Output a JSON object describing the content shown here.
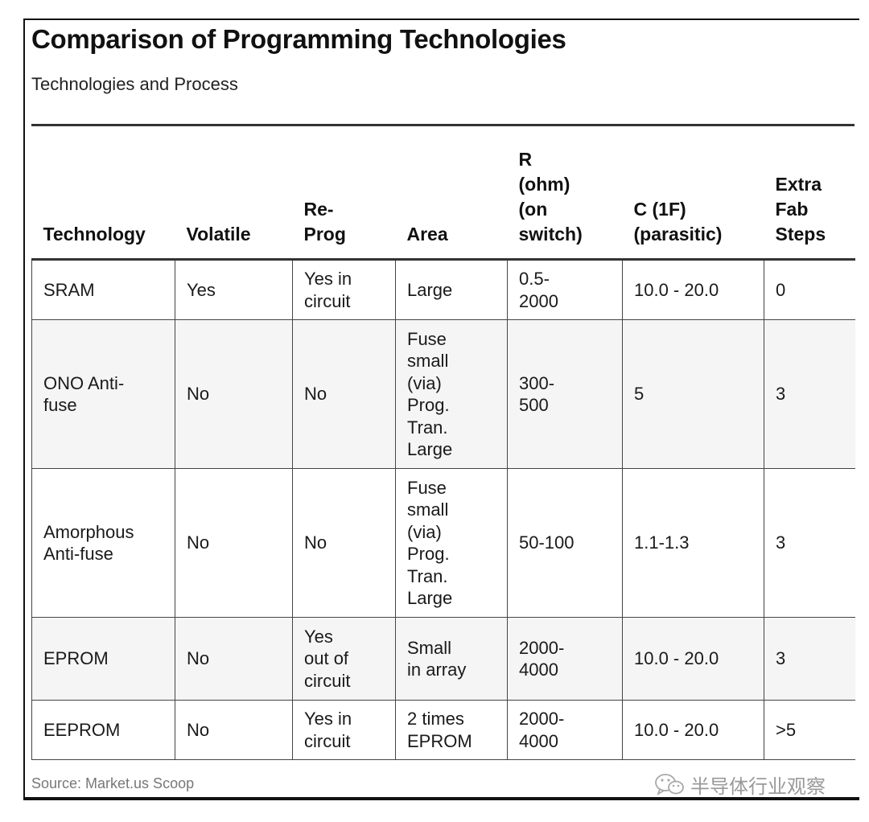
{
  "title": "Comparison of Programming Technologies",
  "subtitle": "Technologies and Process",
  "table": {
    "headers": [
      "Technology",
      "Volatile",
      "Re-\nProg",
      "Area",
      "R\n(ohm)\n(on\nswitch)",
      "C (1F)\n(parasitic)",
      "Extra\nFab\nSteps"
    ],
    "rows": [
      [
        "SRAM",
        "Yes",
        "Yes in\ncircuit",
        "Large",
        "0.5-\n2000",
        "10.0 - 20.0",
        "0"
      ],
      [
        "ONO Anti-\nfuse",
        "No",
        "No",
        "Fuse\nsmall\n(via)\nProg.\nTran.\nLarge",
        "300-\n500",
        "5",
        "3"
      ],
      [
        "Amorphous\nAnti-fuse",
        "No",
        "No",
        "Fuse\nsmall\n(via)\nProg.\nTran.\nLarge",
        "50-100",
        "1.1-1.3",
        "3"
      ],
      [
        "EPROM",
        "No",
        "Yes\nout of\ncircuit",
        "Small\nin array",
        "2000-\n4000",
        "10.0 - 20.0",
        "3"
      ],
      [
        "EEPROM",
        "No",
        "Yes in\ncircuit",
        "2 times\nEPROM",
        "2000-\n4000",
        "10.0 - 20.0",
        ">5"
      ]
    ]
  },
  "source": "Source: Market.us Scoop",
  "watermark": {
    "icon": "wechat-icon",
    "text": "半导体行业观察"
  }
}
